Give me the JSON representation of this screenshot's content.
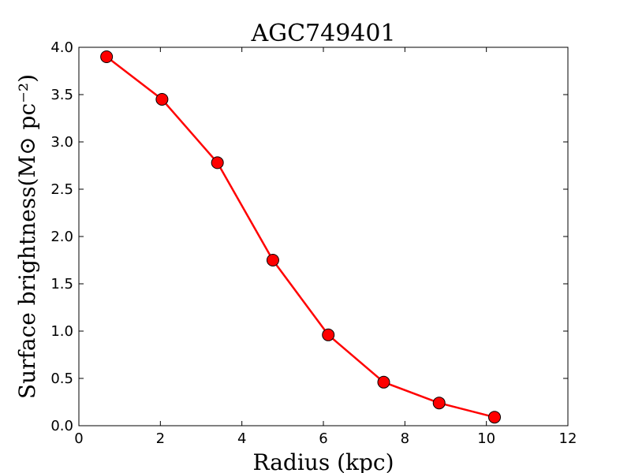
{
  "chart_data": {
    "type": "line",
    "title": "AGC749401",
    "xlabel": "Radius (kpc)",
    "ylabel": "Surface brightness(M⊙ pc⁻²)",
    "xlim": [
      0,
      12
    ],
    "ylim": [
      0,
      4.0
    ],
    "xticks": [
      0,
      2,
      4,
      6,
      8,
      10,
      12
    ],
    "yticks": [
      0.0,
      0.5,
      1.0,
      1.5,
      2.0,
      2.5,
      3.0,
      3.5,
      4.0
    ],
    "xtick_labels": [
      "0",
      "2",
      "4",
      "6",
      "8",
      "10",
      "12"
    ],
    "ytick_labels": [
      "0.0",
      "0.5",
      "1.0",
      "1.5",
      "2.0",
      "2.5",
      "3.0",
      "3.5",
      "4.0"
    ],
    "grid": false,
    "series": [
      {
        "x": [
          0.68,
          2.04,
          3.4,
          4.76,
          6.12,
          7.48,
          8.84,
          10.2
        ],
        "y": [
          3.9,
          3.45,
          2.78,
          1.75,
          0.96,
          0.46,
          0.24,
          0.09
        ],
        "color": "#ff0000",
        "marker": "circle"
      }
    ]
  }
}
